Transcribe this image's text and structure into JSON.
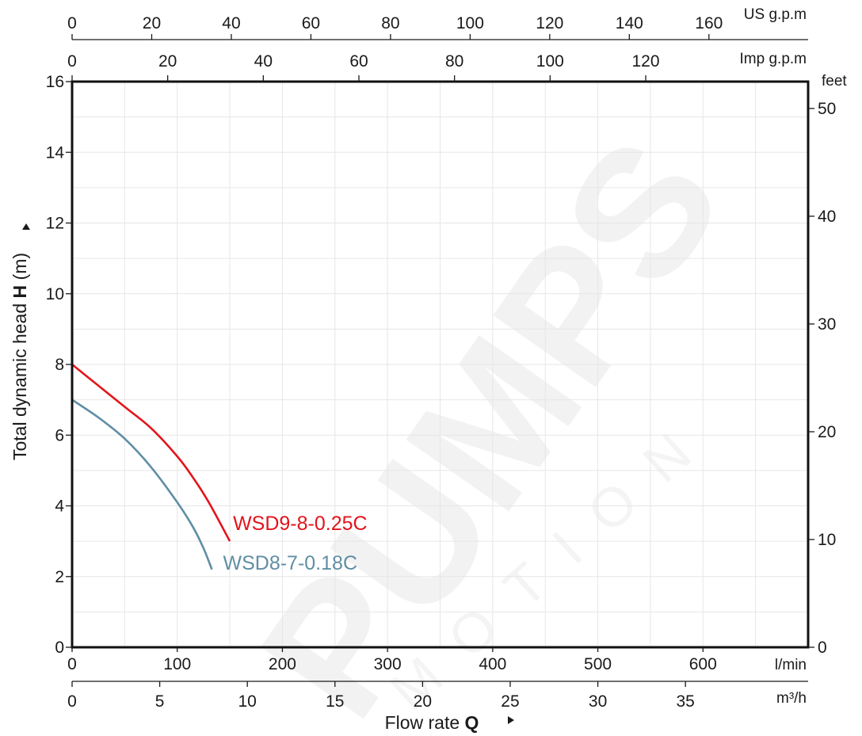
{
  "chart_data": {
    "type": "line",
    "xlabel": "Flow rate",
    "xlabel_symbol": "Q",
    "ylabel": "Total dynamic head",
    "ylabel_symbol": "H",
    "ylabel_unit": "(m)",
    "xlim": [
      0,
      700
    ],
    "ylim": [
      0,
      16
    ],
    "grid": true,
    "x_units": {
      "lmin": {
        "label": "l/min",
        "ticks": [
          0,
          100,
          200,
          300,
          400,
          500,
          600
        ]
      },
      "m3h": {
        "label": "m³/h",
        "ticks": [
          0,
          5,
          10,
          15,
          20,
          25,
          30,
          35
        ]
      },
      "us_gpm": {
        "label": "US g.p.m",
        "ticks": [
          0,
          20,
          40,
          60,
          80,
          100,
          120,
          140,
          160
        ]
      },
      "imp_gpm": {
        "label": "Imp g.p.m",
        "ticks": [
          0,
          20,
          40,
          60,
          80,
          100,
          120
        ]
      }
    },
    "y_ticks": [
      0,
      2,
      4,
      6,
      8,
      10,
      12,
      14,
      16
    ],
    "y2": {
      "label": "feet",
      "ticks": [
        0,
        10,
        20,
        30,
        40,
        50
      ]
    },
    "series": [
      {
        "name": "WSD9-8-0.25C",
        "color": "#e3141b",
        "x": [
          0,
          25,
          50,
          75,
          100,
          115,
          130,
          150
        ],
        "y": [
          8.0,
          7.4,
          6.8,
          6.2,
          5.4,
          4.8,
          4.1,
          3.0
        ]
      },
      {
        "name": "WSD8-7-0.18C",
        "color": "#5f8ea5",
        "x": [
          0,
          25,
          50,
          75,
          100,
          115,
          125,
          133
        ],
        "y": [
          7.0,
          6.5,
          5.9,
          5.1,
          4.1,
          3.4,
          2.8,
          2.2
        ]
      }
    ]
  },
  "watermark": {
    "main": "PUMPS",
    "sub": "MOTION"
  }
}
